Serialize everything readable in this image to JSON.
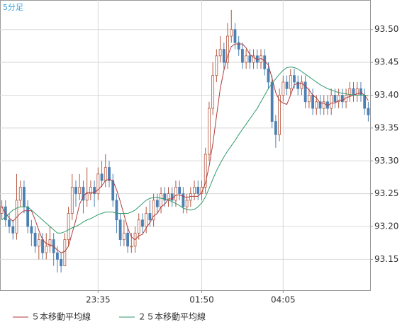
{
  "chart_data": {
    "type": "candlestick",
    "title": "5分足",
    "categories": [
      null,
      null,
      null,
      null,
      null,
      null,
      null,
      null,
      null,
      null,
      null,
      null,
      null,
      null,
      null,
      null,
      null,
      null,
      null,
      null,
      null,
      null,
      null,
      null,
      null,
      null,
      "23:35",
      null,
      null,
      null,
      null,
      null,
      null,
      null,
      null,
      null,
      null,
      null,
      null,
      null,
      null,
      null,
      null,
      null,
      null,
      null,
      null,
      null,
      null,
      null,
      null,
      null,
      null,
      null,
      "01:50",
      null,
      null,
      null,
      null,
      null,
      null,
      null,
      null,
      null,
      null,
      null,
      null,
      null,
      null,
      null,
      null,
      null,
      null,
      null,
      null,
      null,
      "04:05",
      null,
      null,
      null,
      null,
      null,
      null,
      null,
      null,
      null,
      null,
      null,
      null,
      null,
      null,
      null,
      null,
      null,
      null,
      null,
      null,
      null,
      null,
      null
    ],
    "open": [
      93.22,
      93.23,
      93.21,
      93.2,
      93.19,
      93.24,
      93.26,
      93.23,
      93.2,
      93.19,
      93.17,
      93.18,
      93.16,
      93.17,
      93.18,
      93.16,
      93.15,
      93.14,
      93.18,
      93.22,
      93.26,
      93.25,
      93.26,
      93.24,
      93.25,
      93.26,
      93.25,
      93.28,
      93.27,
      93.29,
      93.27,
      93.24,
      93.21,
      93.18,
      93.19,
      93.17,
      93.17,
      93.19,
      93.21,
      93.2,
      93.22,
      93.21,
      93.24,
      93.23,
      93.25,
      93.24,
      93.25,
      93.24,
      93.26,
      93.25,
      93.23,
      93.24,
      93.25,
      93.26,
      93.25,
      93.26,
      93.31,
      93.38,
      93.43,
      93.46,
      93.47,
      93.45,
      93.49,
      93.5,
      93.48,
      93.47,
      93.45,
      93.46,
      93.45,
      93.46,
      93.45,
      93.46,
      93.44,
      93.42,
      93.36,
      93.34,
      93.4,
      93.42,
      93.41,
      93.43,
      93.42,
      93.41,
      93.42,
      93.39,
      93.4,
      93.38,
      93.39,
      93.38,
      93.39,
      93.38,
      93.4,
      93.39,
      93.4,
      93.39,
      93.4,
      93.41,
      93.4,
      93.41,
      93.4,
      93.38
    ],
    "high": [
      93.24,
      93.24,
      93.22,
      93.21,
      93.28,
      93.27,
      93.27,
      93.24,
      93.21,
      93.2,
      93.19,
      93.19,
      93.19,
      93.2,
      93.19,
      93.17,
      93.16,
      93.19,
      93.23,
      93.28,
      93.27,
      93.28,
      93.27,
      93.29,
      93.27,
      93.27,
      93.29,
      93.3,
      93.31,
      93.3,
      93.28,
      93.25,
      93.22,
      93.21,
      93.2,
      93.19,
      93.2,
      93.22,
      93.22,
      93.23,
      93.24,
      93.25,
      93.25,
      93.26,
      93.26,
      93.26,
      93.26,
      93.27,
      93.27,
      93.26,
      93.25,
      93.26,
      93.27,
      93.27,
      93.27,
      93.32,
      93.39,
      93.45,
      93.47,
      93.49,
      93.48,
      93.51,
      93.53,
      93.51,
      93.49,
      93.48,
      93.47,
      93.47,
      93.47,
      93.47,
      93.47,
      93.47,
      93.45,
      93.43,
      93.37,
      93.41,
      93.43,
      93.43,
      93.44,
      93.44,
      93.43,
      93.43,
      93.43,
      93.41,
      93.41,
      93.4,
      93.4,
      93.4,
      93.4,
      93.41,
      93.41,
      93.41,
      93.41,
      93.41,
      93.42,
      93.42,
      93.42,
      93.42,
      93.41,
      93.39
    ],
    "low": [
      93.21,
      93.2,
      93.19,
      93.18,
      93.18,
      93.23,
      93.22,
      93.19,
      93.17,
      93.16,
      93.15,
      93.15,
      93.15,
      93.16,
      93.14,
      93.13,
      93.13,
      93.14,
      93.17,
      93.21,
      93.23,
      93.24,
      93.22,
      93.23,
      93.24,
      93.23,
      93.24,
      93.26,
      93.26,
      93.26,
      93.23,
      93.19,
      93.17,
      93.17,
      93.16,
      93.16,
      93.16,
      93.18,
      93.19,
      93.19,
      93.2,
      93.2,
      93.22,
      93.22,
      93.23,
      93.23,
      93.23,
      93.23,
      93.24,
      93.22,
      93.22,
      93.23,
      93.24,
      93.24,
      93.24,
      93.25,
      93.3,
      93.37,
      93.42,
      93.45,
      93.44,
      93.44,
      93.48,
      93.47,
      93.46,
      93.44,
      93.44,
      93.44,
      93.44,
      93.44,
      93.44,
      93.43,
      93.41,
      93.35,
      93.32,
      93.33,
      93.39,
      93.4,
      93.4,
      93.41,
      93.4,
      93.4,
      93.38,
      93.38,
      93.37,
      93.37,
      93.37,
      93.37,
      93.37,
      93.37,
      93.38,
      93.38,
      93.38,
      93.38,
      93.39,
      93.39,
      93.39,
      93.39,
      93.37,
      93.36
    ],
    "close": [
      93.23,
      93.21,
      93.2,
      93.19,
      93.24,
      93.26,
      93.23,
      93.2,
      93.19,
      93.17,
      93.18,
      93.16,
      93.17,
      93.18,
      93.16,
      93.15,
      93.14,
      93.18,
      93.22,
      93.26,
      93.25,
      93.26,
      93.24,
      93.25,
      93.26,
      93.25,
      93.28,
      93.27,
      93.29,
      93.27,
      93.24,
      93.21,
      93.18,
      93.19,
      93.17,
      93.17,
      93.19,
      93.21,
      93.2,
      93.22,
      93.21,
      93.24,
      93.23,
      93.25,
      93.24,
      93.25,
      93.24,
      93.26,
      93.25,
      93.23,
      93.24,
      93.25,
      93.26,
      93.25,
      93.26,
      93.31,
      93.38,
      93.43,
      93.46,
      93.47,
      93.45,
      93.49,
      93.5,
      93.48,
      93.47,
      93.45,
      93.46,
      93.45,
      93.46,
      93.45,
      93.46,
      93.44,
      93.42,
      93.36,
      93.34,
      93.4,
      93.42,
      93.41,
      93.43,
      93.42,
      93.41,
      93.42,
      93.39,
      93.4,
      93.38,
      93.39,
      93.38,
      93.39,
      93.38,
      93.4,
      93.39,
      93.4,
      93.39,
      93.4,
      93.41,
      93.4,
      93.41,
      93.4,
      93.38,
      93.37
    ],
    "up_color": "#b4573f",
    "down_color": "#4d80b3",
    "series": [
      {
        "name": "５本移動平均線",
        "color": "#b23a3a",
        "values": [
          93.23,
          93.22,
          93.213,
          93.208,
          93.214,
          93.22,
          93.224,
          93.224,
          93.224,
          93.21,
          93.194,
          93.18,
          93.174,
          93.172,
          93.17,
          93.164,
          93.16,
          93.162,
          93.17,
          93.19,
          93.21,
          93.234,
          93.246,
          93.252,
          93.252,
          93.252,
          93.256,
          93.262,
          93.27,
          93.272,
          93.27,
          93.256,
          93.238,
          93.218,
          93.198,
          93.184,
          93.18,
          93.186,
          93.188,
          93.198,
          93.206,
          93.216,
          93.22,
          93.23,
          93.234,
          93.242,
          93.242,
          93.248,
          93.248,
          93.246,
          93.244,
          93.246,
          93.246,
          93.246,
          93.252,
          93.266,
          93.292,
          93.326,
          93.368,
          93.41,
          93.438,
          93.46,
          93.474,
          93.478,
          93.478,
          93.478,
          93.472,
          93.462,
          93.458,
          93.454,
          93.456,
          93.452,
          93.446,
          93.426,
          93.404,
          93.392,
          93.388,
          93.386,
          93.4,
          93.416,
          93.418,
          93.418,
          93.414,
          93.408,
          93.4,
          93.396,
          93.388,
          93.388,
          93.384,
          93.388,
          93.388,
          93.392,
          93.392,
          93.396,
          93.398,
          93.4,
          93.402,
          93.404,
          93.4,
          93.392
        ]
      },
      {
        "name": "２５本移動平均線",
        "color": "#2f9a6a",
        "values": [
          93.21,
          93.215,
          93.22,
          93.225,
          93.228,
          93.23,
          93.23,
          93.23,
          93.225,
          93.22,
          93.215,
          93.21,
          93.205,
          93.2,
          93.195,
          93.19,
          93.19,
          93.192,
          93.195,
          93.198,
          93.2,
          93.203,
          93.207,
          93.21,
          93.212,
          93.215,
          93.218,
          93.22,
          93.222,
          93.222,
          93.222,
          93.22,
          93.22,
          93.22,
          93.22,
          93.222,
          93.225,
          93.23,
          93.235,
          93.24,
          93.243,
          93.244,
          93.244,
          93.243,
          93.242,
          93.24,
          93.238,
          93.235,
          93.232,
          93.228,
          93.226,
          93.225,
          93.226,
          93.23,
          93.236,
          93.245,
          93.258,
          93.272,
          93.285,
          93.296,
          93.306,
          93.315,
          93.323,
          93.331,
          93.34,
          93.348,
          93.356,
          93.364,
          93.372,
          93.38,
          93.39,
          93.4,
          93.41,
          93.418,
          93.425,
          93.432,
          93.438,
          93.442,
          93.443,
          93.442,
          93.44,
          93.436,
          93.432,
          93.428,
          93.424,
          93.42,
          93.416,
          93.413,
          93.41,
          93.408,
          93.406,
          93.404,
          93.403,
          93.402,
          93.401,
          93.4,
          93.4,
          93.4,
          93.4,
          93.399
        ]
      }
    ],
    "ylim": [
      93.103,
      93.545
    ],
    "yticks": [
      {
        "value": 93.5,
        "label": "93.50"
      },
      93.45,
      {
        "value": 93.4,
        "label": "93.40"
      },
      93.35,
      {
        "value": 93.3,
        "label": "93.30"
      },
      93.25,
      {
        "value": 93.2,
        "label": "93.20"
      },
      93.15
    ],
    "grid": true
  }
}
